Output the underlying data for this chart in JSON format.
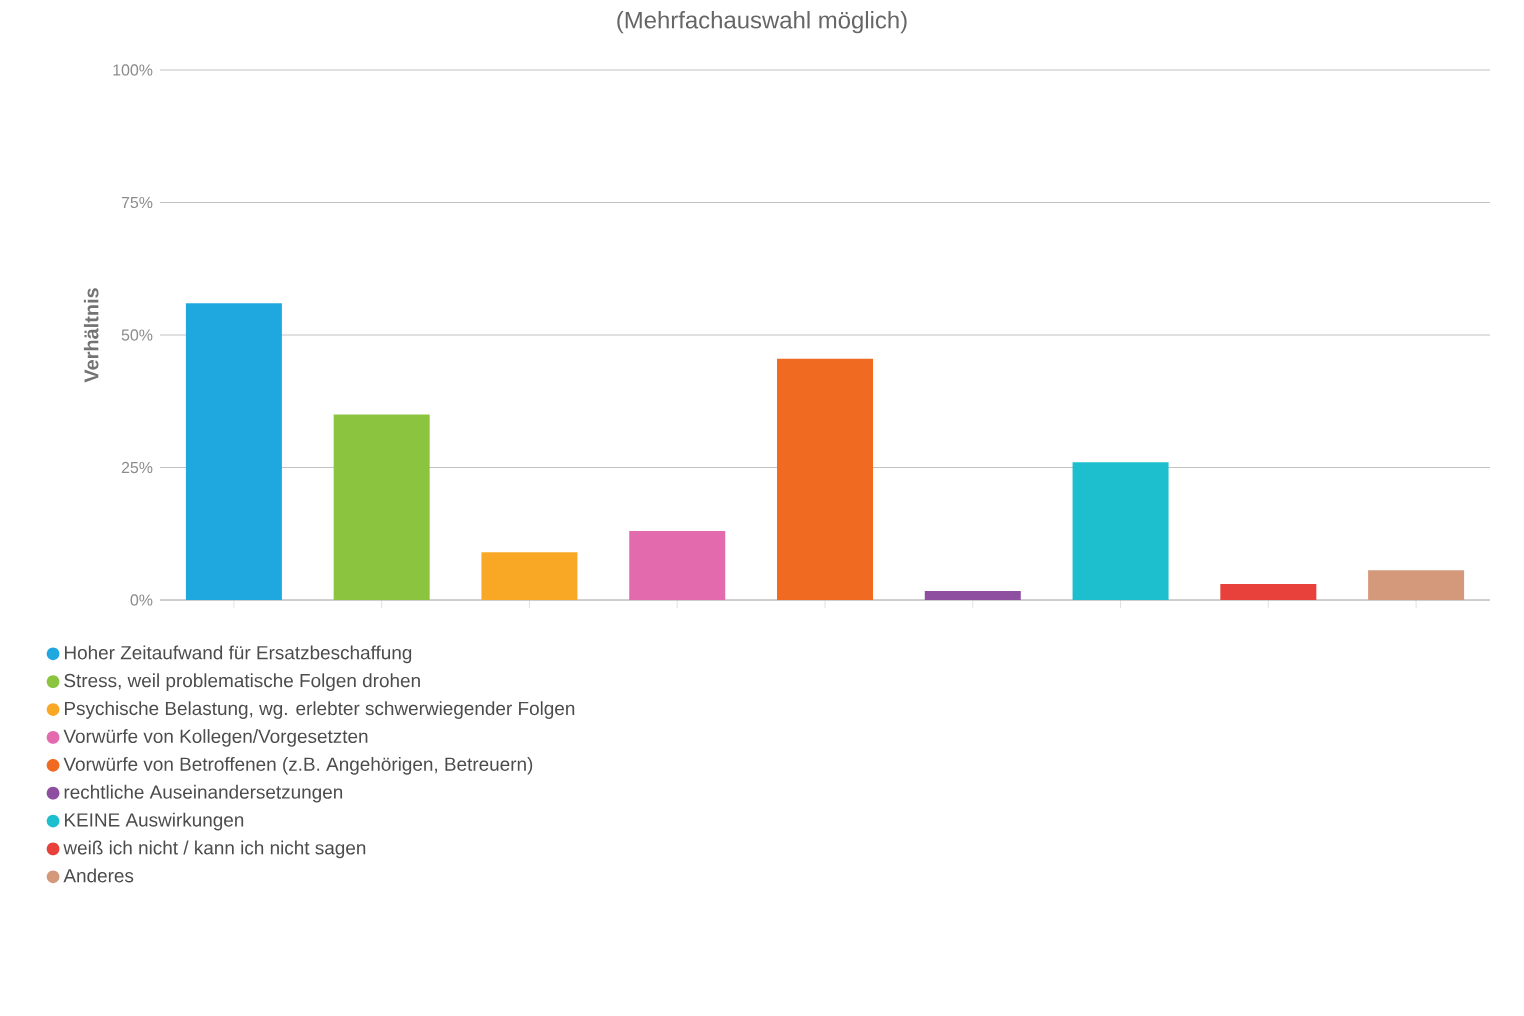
{
  "chart_data": {
    "type": "bar",
    "title": "(Mehrfachauswahl möglich)",
    "ylabel": "Verhältnis",
    "categories": [
      null,
      null,
      null,
      null,
      null,
      null,
      null,
      null,
      null
    ],
    "series": [
      {
        "name": "Hoher Zeitaufwand für Ersatzbeschaffung",
        "color": "#1fa8e0",
        "values": [
          56,
          null,
          null,
          null,
          null,
          null,
          null,
          null,
          null
        ]
      },
      {
        "name": "Stress, weil problematische Folgen drohen",
        "color": "#8bc540",
        "values": [
          null,
          35,
          null,
          null,
          null,
          null,
          null,
          null,
          null
        ]
      },
      {
        "name": "Psychische Belastung, wg. erlebter schwerwiegender Folgen",
        "color": "#f9a825",
        "values": [
          null,
          null,
          9,
          null,
          null,
          null,
          null,
          null,
          null
        ]
      },
      {
        "name": "Vorwürfe von Kollegen/Vorgesetzten",
        "color": "#e36aad",
        "values": [
          null,
          null,
          null,
          13,
          null,
          null,
          null,
          null,
          null
        ]
      },
      {
        "name": "Vorwürfe von Betroffenen (z.B. Angehörigen, Betreuern)",
        "color": "#f06a22",
        "values": [
          null,
          null,
          null,
          null,
          45.5,
          null,
          null,
          null,
          null
        ]
      },
      {
        "name": "rechtliche Auseinandersetzungen",
        "color": "#8e4fa0",
        "values": [
          null,
          null,
          null,
          null,
          null,
          1.7,
          null,
          null,
          null
        ]
      },
      {
        "name": "KEINE Auswirkungen",
        "color": "#1dbfcf",
        "values": [
          null,
          null,
          null,
          null,
          null,
          null,
          26,
          null,
          null
        ]
      },
      {
        "name": "weiß ich nicht / kann ich nicht sagen",
        "color": "#e8403a",
        "values": [
          null,
          null,
          null,
          null,
          null,
          null,
          null,
          3,
          null
        ]
      },
      {
        "name": "Anderes",
        "color": "#d4987a",
        "values": [
          null,
          null,
          null,
          null,
          null,
          null,
          null,
          null,
          5.6
        ]
      }
    ],
    "ylim": [
      0,
      100
    ],
    "yticks": [
      {
        "value": 0,
        "label": "0%"
      },
      {
        "value": 25,
        "label": "25%"
      },
      {
        "value": 50,
        "label": "50%"
      },
      {
        "value": 75,
        "label": "75%"
      },
      {
        "value": 100,
        "label": "100%"
      }
    ],
    "grid": "y",
    "legend": "bottom",
    "tick_labels": "y"
  }
}
